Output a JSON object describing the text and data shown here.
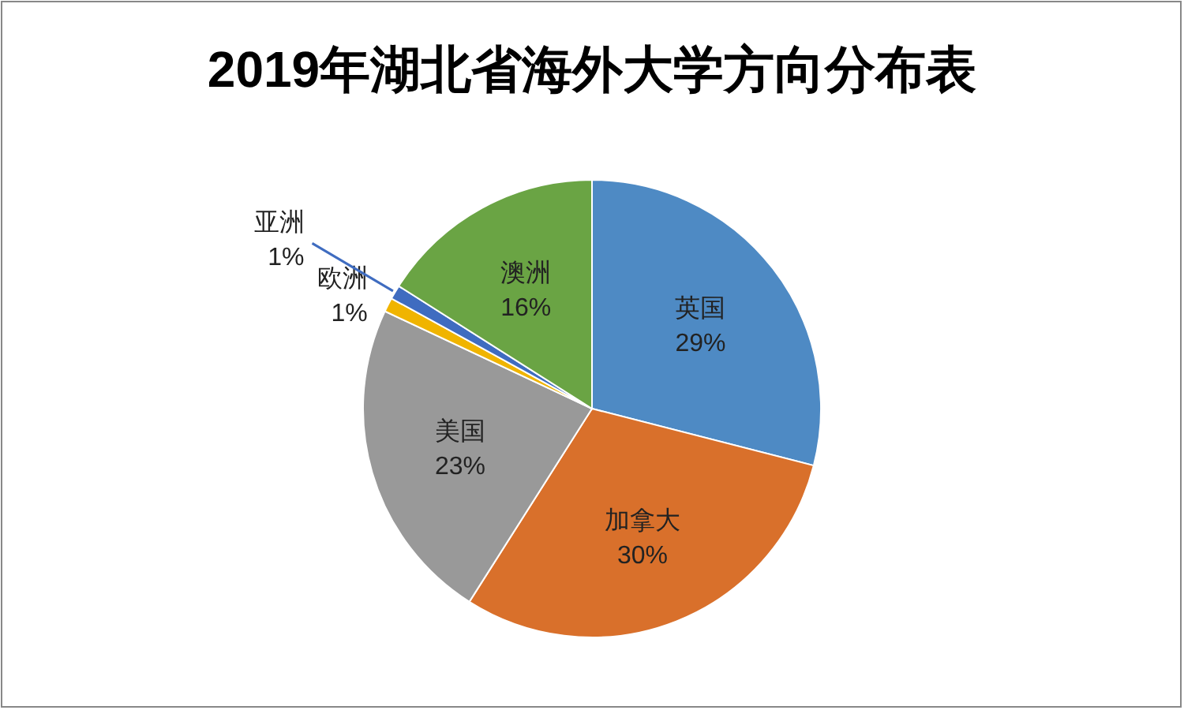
{
  "chart_data": {
    "type": "pie",
    "title": "2019年湖北省海外大学方向分布表",
    "categories": [
      "英国",
      "加拿大",
      "美国",
      "欧洲",
      "亚洲",
      "澳洲"
    ],
    "values": [
      29,
      30,
      23,
      1,
      1,
      16
    ],
    "value_labels": [
      "29%",
      "30%",
      "23%",
      "1%",
      "1%",
      "16%"
    ],
    "colors": [
      "#4e8ac4",
      "#d9702b",
      "#999999",
      "#f0b400",
      "#3f6cc0",
      "#6aa444"
    ]
  }
}
